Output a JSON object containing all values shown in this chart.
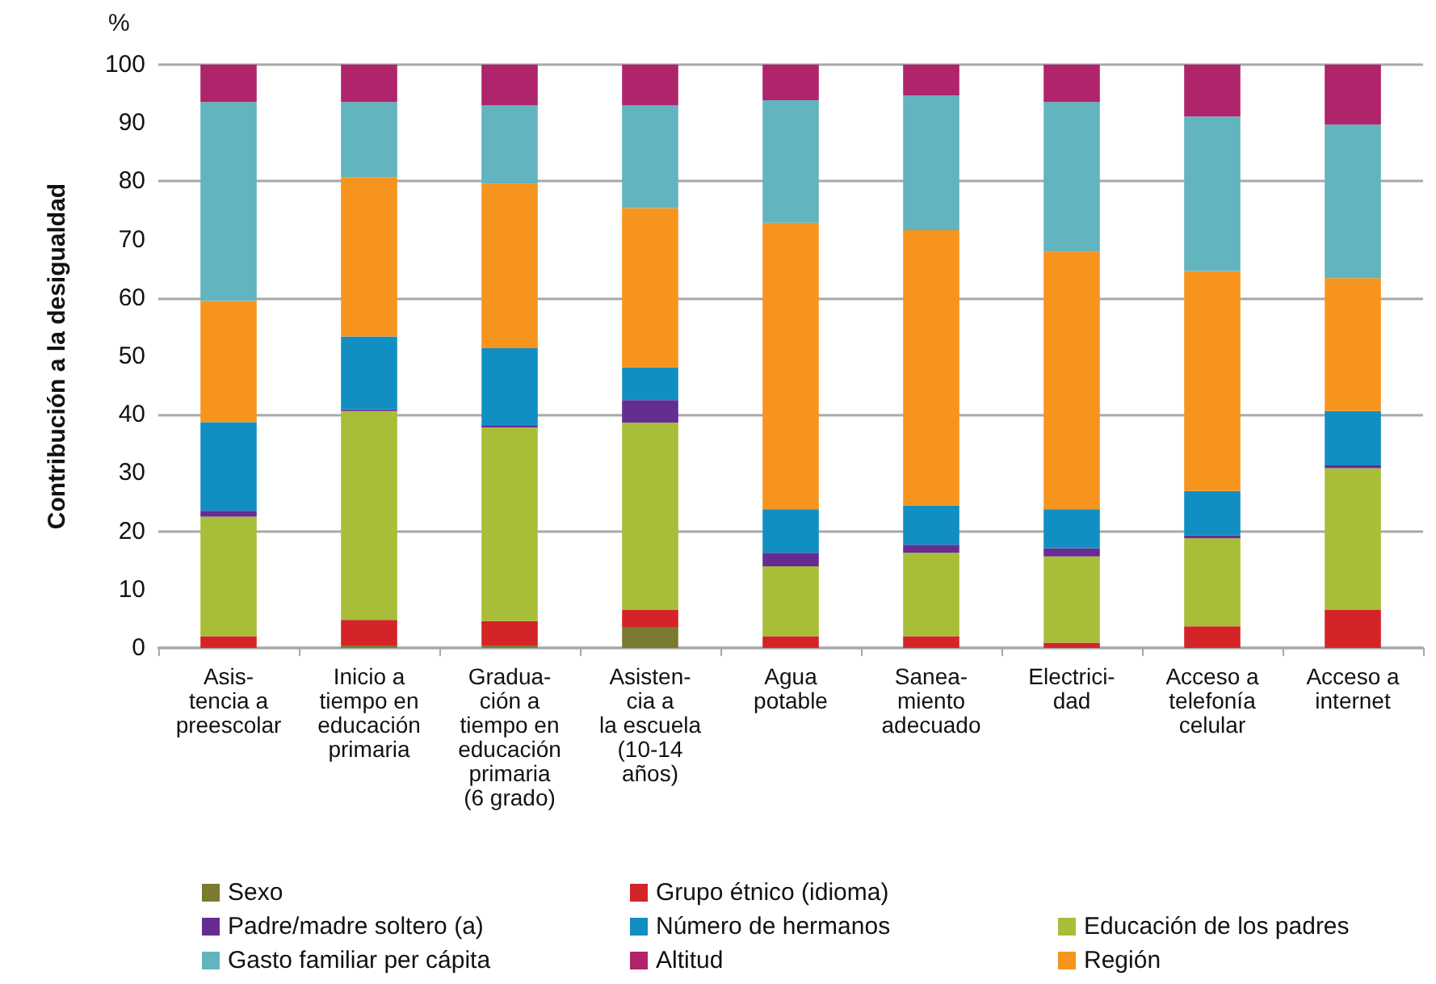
{
  "chart_data": {
    "type": "bar",
    "stacked": true,
    "ylabel": "Contribución a la desigualdad",
    "annotations": [
      "%"
    ],
    "categories": [
      "Asis-\ntencia a\npreescolar",
      "Inicio a\ntiempo en\neducación\nprimaria",
      "Gradua-\nción a\ntiempo en\neducación\nprimaria\n(6 grado)",
      "Asisten-\ncia a\nla escuela\n(10-14\naños)",
      "Agua\npotable",
      "Sanea-\nmiento\nadecuado",
      "Electrici-\ndad",
      "Acceso a\ntelefonía\ncelular",
      "Acceso a\ninternet"
    ],
    "series": [
      {
        "name": "Sexo",
        "color": "#7a7a30",
        "values": [
          0,
          0.4,
          0.4,
          3.6,
          0,
          0,
          0,
          0,
          0
        ]
      },
      {
        "name": "Grupo étnico (idioma)",
        "color": "#d42428",
        "values": [
          2.0,
          4.4,
          4.2,
          2.9,
          2.0,
          2.0,
          0.9,
          3.7,
          6.5
        ]
      },
      {
        "name": "Educación de los padres",
        "color": "#a8be38",
        "values": [
          20.5,
          35.8,
          33.2,
          32.1,
          12.0,
          14.3,
          14.8,
          15.1,
          24.3
        ]
      },
      {
        "name": "Padre/madre soltero (a)",
        "color": "#662d91",
        "values": [
          1.0,
          0.3,
          0.3,
          3.9,
          2.3,
          1.4,
          1.4,
          0.5,
          0.5
        ]
      },
      {
        "name": "Número de hermanos",
        "color": "#128fc2",
        "values": [
          15.2,
          12.5,
          13.3,
          5.6,
          7.5,
          6.7,
          6.7,
          7.6,
          9.3
        ]
      },
      {
        "name": "Región",
        "color": "#f7941e",
        "values": [
          20.8,
          27.3,
          28.2,
          27.3,
          49.1,
          47.2,
          44.1,
          37.7,
          22.8
        ]
      },
      {
        "name": "Gasto familiar per cápita",
        "color": "#62b4bf",
        "values": [
          34.1,
          12.9,
          13.4,
          17.6,
          21.0,
          23.1,
          25.7,
          26.5,
          26.3
        ]
      },
      {
        "name": "Altitud",
        "color": "#af246a",
        "values": [
          6.4,
          6.4,
          7.0,
          7.0,
          6.1,
          5.3,
          6.4,
          8.9,
          10.3
        ]
      }
    ],
    "ylim": [
      0,
      100
    ],
    "yticks": [
      0,
      10,
      20,
      30,
      40,
      50,
      60,
      70,
      80,
      90,
      100
    ],
    "grid": "y",
    "legend": "bottom"
  }
}
